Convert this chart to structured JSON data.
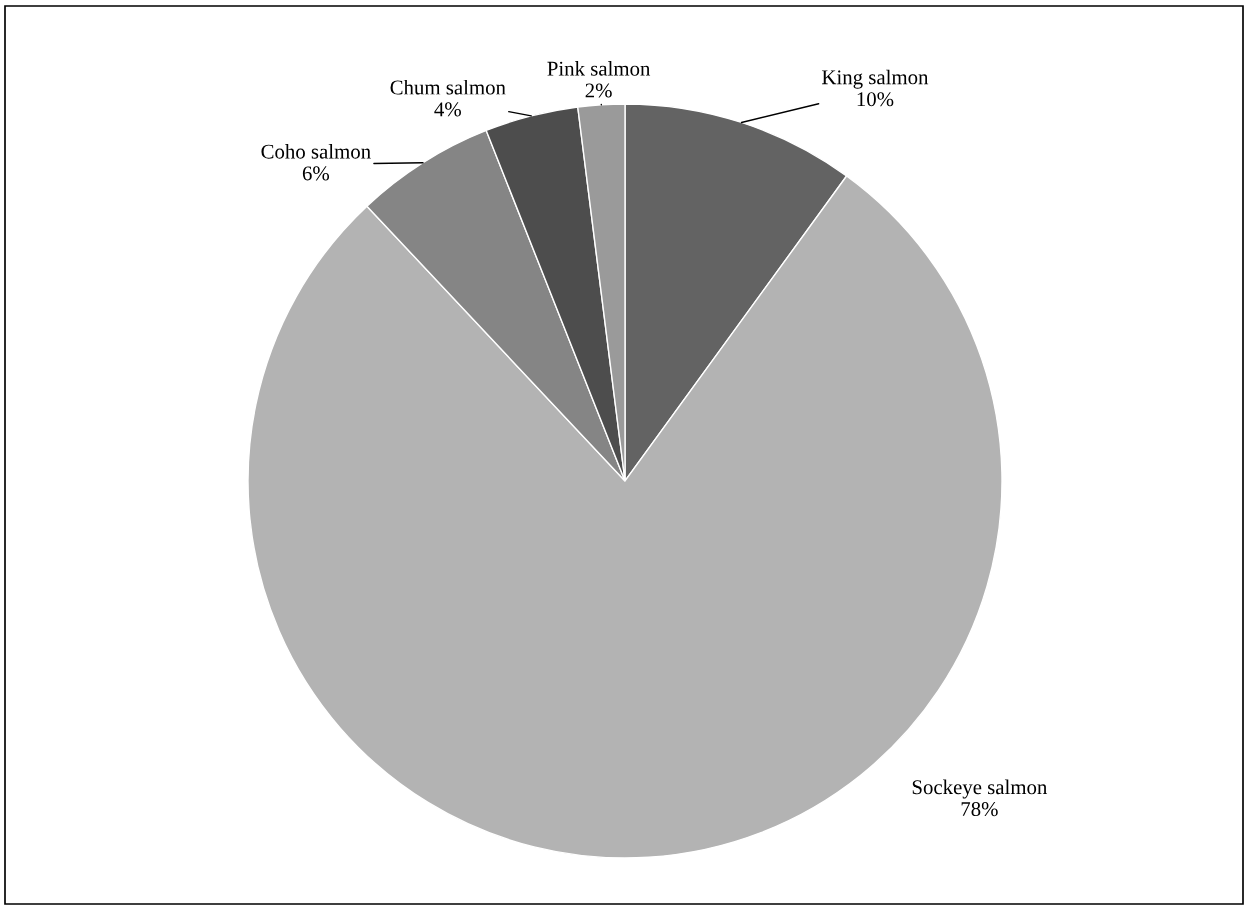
{
  "chart_data": {
    "type": "pie",
    "categories": [
      "King salmon",
      "Sockeye salmon",
      "Coho salmon",
      "Chum salmon",
      "Pink salmon"
    ],
    "values": [
      10,
      78,
      6,
      4,
      2
    ],
    "value_labels": [
      "10%",
      "78%",
      "6%",
      "4%",
      "2%"
    ],
    "colors": [
      "#636363",
      "#b3b3b3",
      "#858585",
      "#4d4d4d",
      "#9a9a9a"
    ],
    "legend": false
  }
}
